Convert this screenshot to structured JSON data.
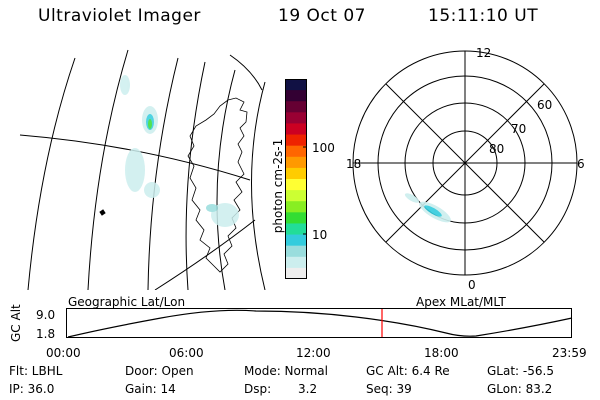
{
  "header": {
    "instrument": "Ultraviolet Imager",
    "date": "19 Oct 07",
    "time": "15:11:10 UT"
  },
  "colorbar": {
    "label": "photon cm-2s-1",
    "ticks": [
      "100",
      "10"
    ],
    "colors": [
      "#111144",
      "#330033",
      "#660033",
      "#990033",
      "#cc0022",
      "#ee2200",
      "#ff6600",
      "#ff9900",
      "#ffcc00",
      "#ffff33",
      "#ccff33",
      "#88ee22",
      "#33dd33",
      "#22dd99",
      "#33ccdd",
      "#99dddd",
      "#cceeee",
      "#eeeeee"
    ]
  },
  "polar_plot": {
    "mlt_labels": {
      "top": "12",
      "bottom": "0",
      "left": "18",
      "right": "6"
    },
    "lat_labels": [
      "60",
      "70",
      "80"
    ]
  },
  "timeline": {
    "left_label": "Geographic Lat/Lon",
    "right_label": "Apex MLat/MLT",
    "y_axis_label": "GC Alt",
    "y_ticks": [
      "9.0",
      "1.8"
    ],
    "x_ticks": [
      "00:00",
      "06:00",
      "12:00",
      "18:00",
      "23:59"
    ],
    "current_time_color": "#ff0000"
  },
  "status": {
    "filter": "Flt: LBHL",
    "door": "Door: Open",
    "mode": "Mode: Normal",
    "gc_alt": "GC Alt: 6.4 Re",
    "glat": "GLat: -56.5",
    "ip": "IP: 36.0",
    "gain": "Gain: 14",
    "dsp_label": "Dsp:",
    "dsp_value": "3.2",
    "seq": "Seq: 39",
    "glon": "GLon: 83.2"
  }
}
